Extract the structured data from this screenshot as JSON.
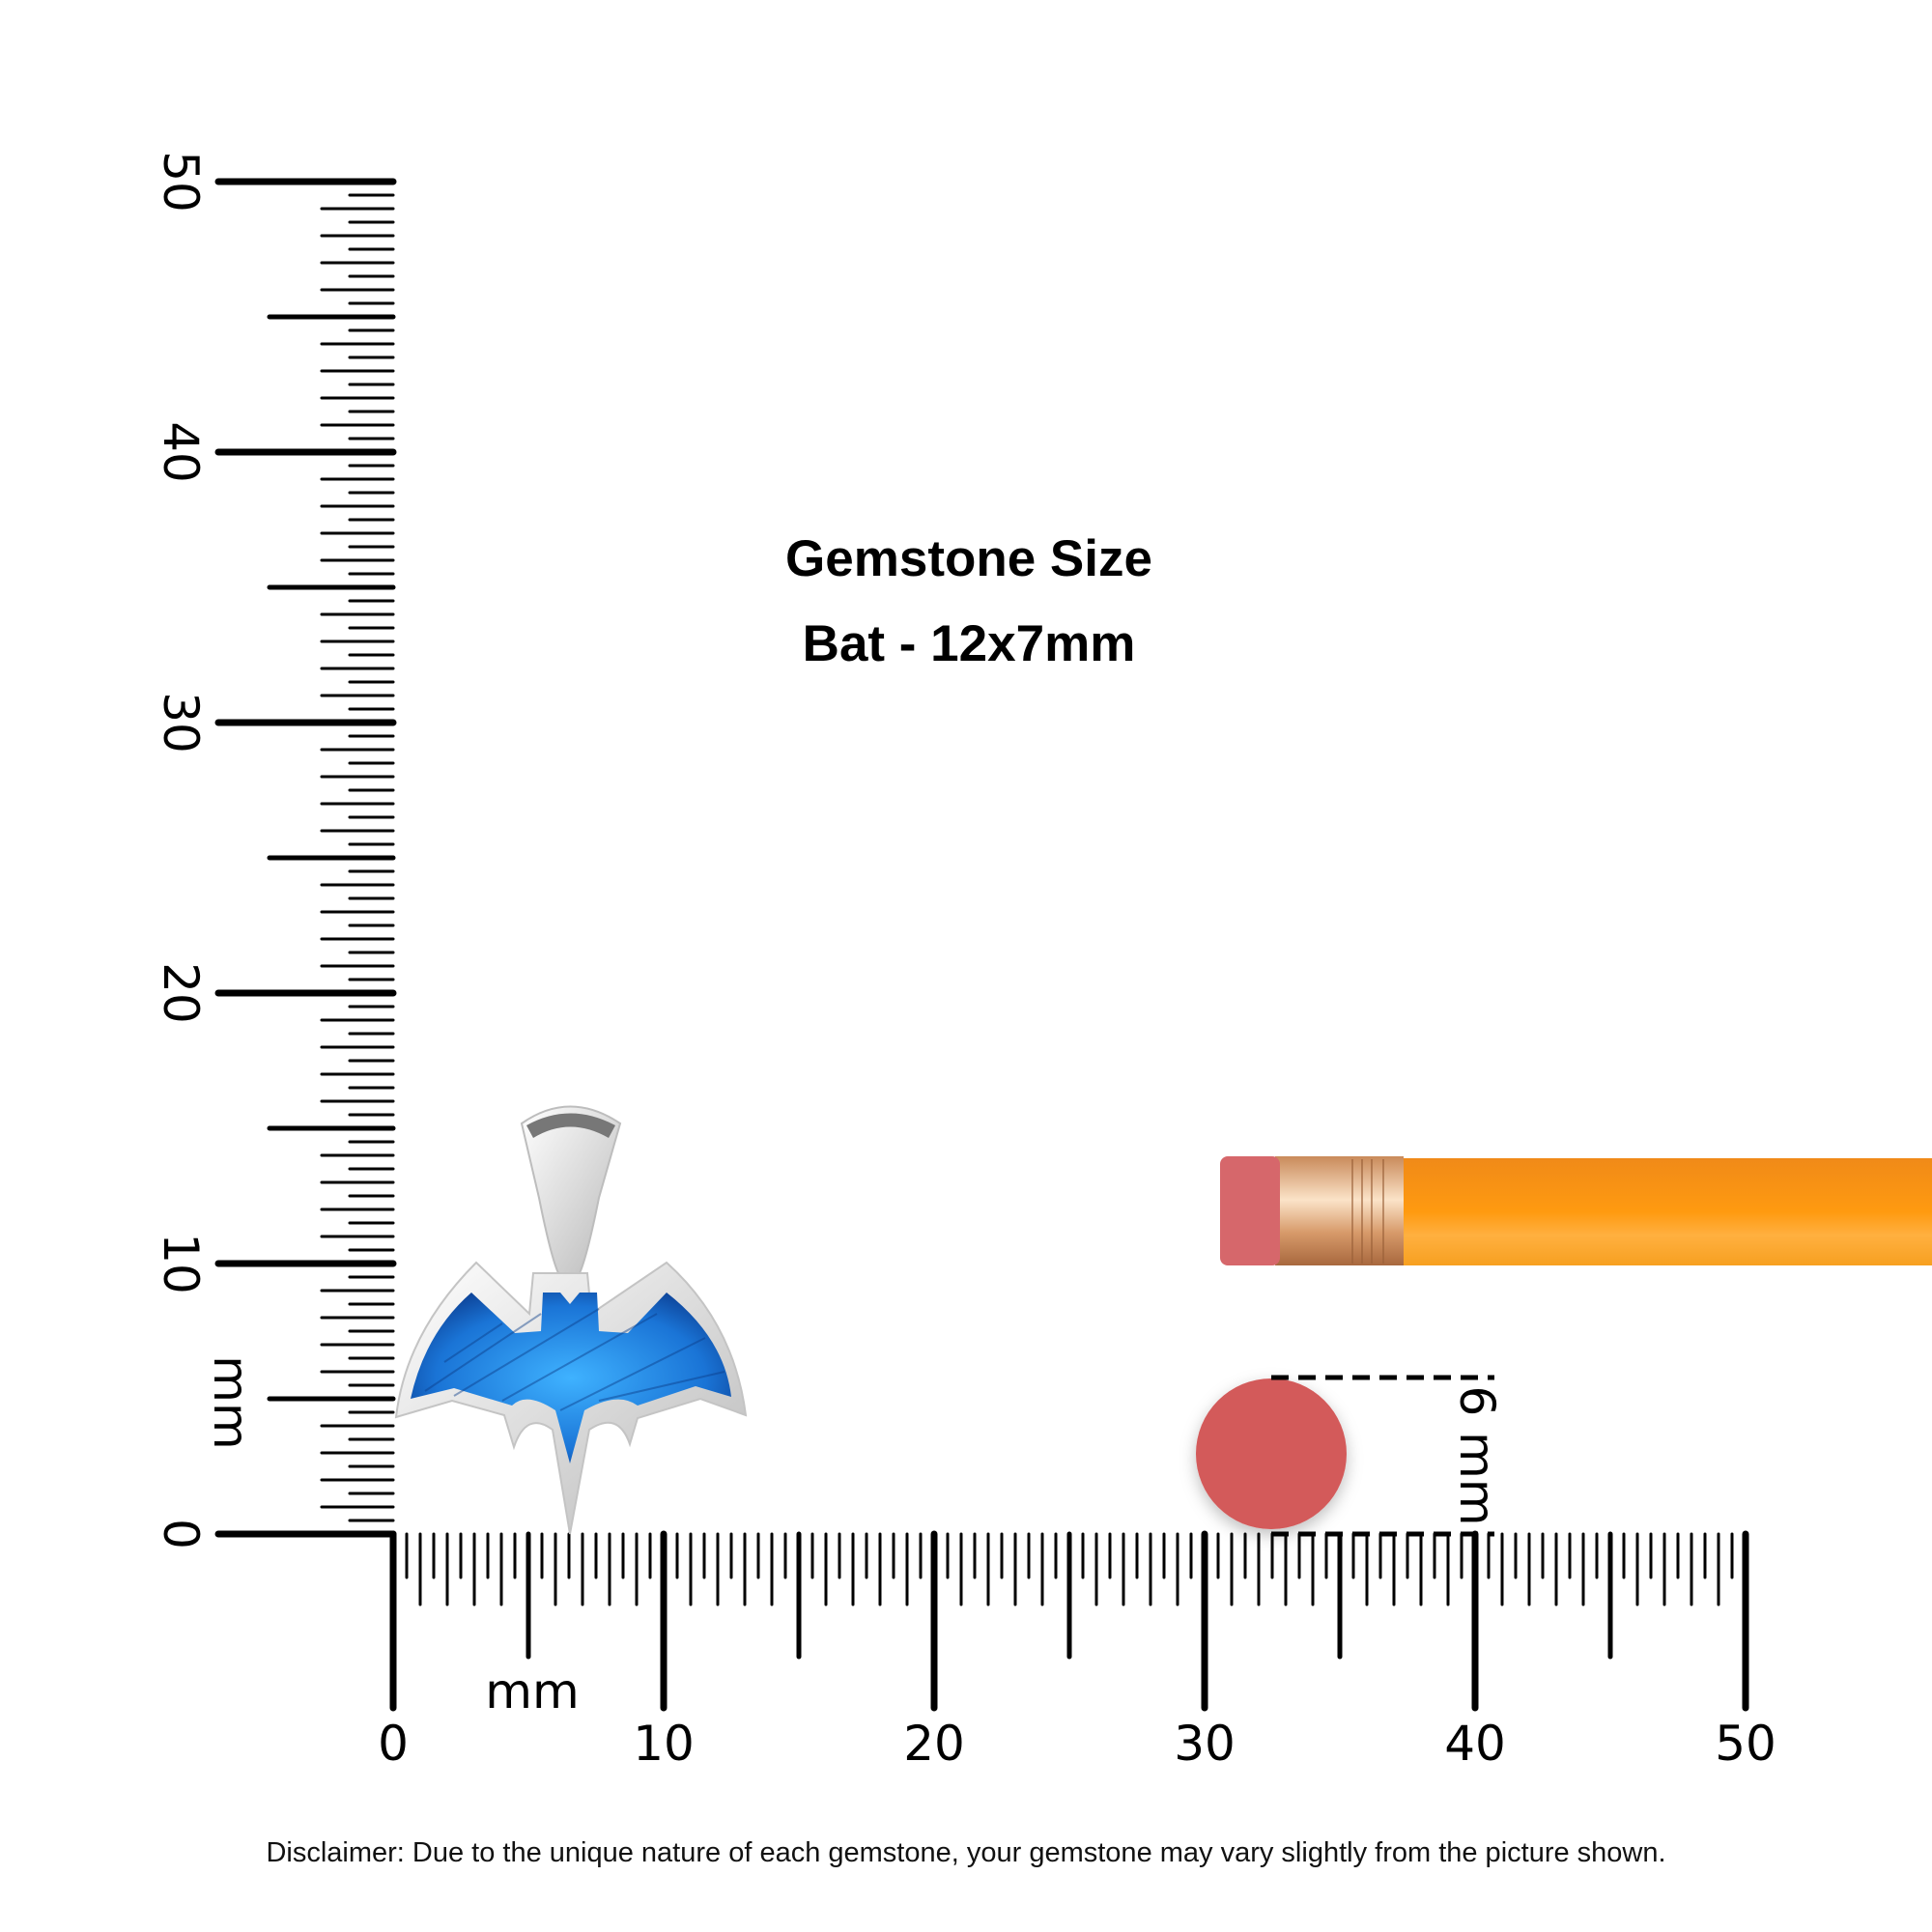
{
  "heading": {
    "title": "Gemstone Size",
    "subtitle": "Bat - 12x7mm"
  },
  "rulers": {
    "unit_label": "mm",
    "horizontal": {
      "min": 0,
      "max": 50,
      "labels": [
        "0",
        "10",
        "20",
        "30",
        "40",
        "50"
      ]
    },
    "vertical": {
      "min": 0,
      "max": 50,
      "labels": [
        "0",
        "10",
        "20",
        "30",
        "40",
        "50"
      ]
    }
  },
  "reference": {
    "eraser_label": "6 mm",
    "eraser_color": "#d35a5a",
    "pencil_color": "#ff9a10"
  },
  "product": {
    "stone_color": "#1e7fd8",
    "metal_color": "#e6e6e6"
  },
  "disclaimer": "Disclaimer: Due to the unique nature of each gemstone, your gemstone may vary slightly from the picture shown."
}
